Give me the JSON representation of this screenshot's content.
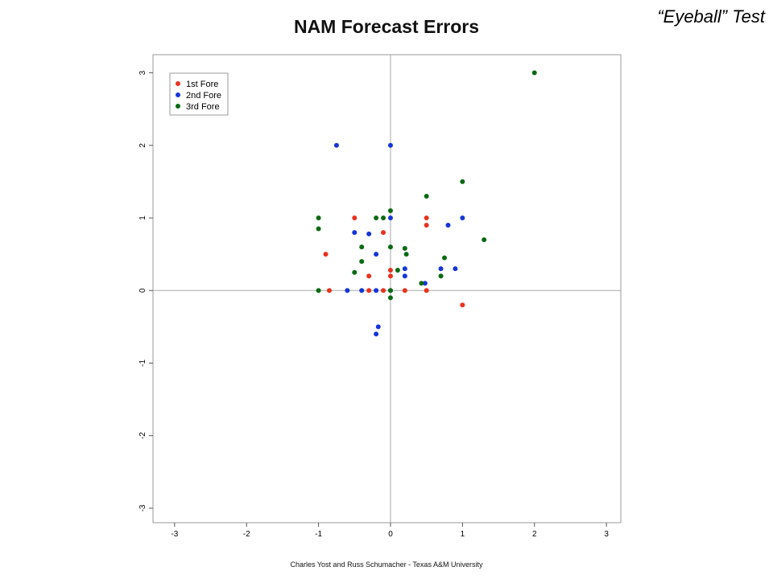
{
  "corner_label": "“Eyeball” Test",
  "footer": "Charles Yost and Russ Schumacher - Texas A&M University",
  "chart_data": {
    "type": "scatter",
    "title": "NAM Forecast Errors",
    "xlabel": "",
    "ylabel": "",
    "xlim": [
      -3.3,
      3.2
    ],
    "ylim": [
      -3.2,
      3.25
    ],
    "xticks": [
      -3,
      -2,
      -1,
      0,
      1,
      2,
      3
    ],
    "yticks": [
      -3,
      -2,
      -1,
      0,
      1,
      2,
      3
    ],
    "legend_position": "top-left",
    "reference_lines": [
      0
    ],
    "series": [
      {
        "name": "1st Fore",
        "color": "#e8321e",
        "points": [
          [
            -0.5,
            1.0
          ],
          [
            -0.1,
            0.8
          ],
          [
            -0.9,
            0.5
          ],
          [
            -0.85,
            0.0
          ],
          [
            -0.3,
            0.2
          ],
          [
            -0.3,
            0.0
          ],
          [
            -0.1,
            0.0
          ],
          [
            0.0,
            0.28
          ],
          [
            0.0,
            0.2
          ],
          [
            0.2,
            0.0
          ],
          [
            0.5,
            1.0
          ],
          [
            0.5,
            0.9
          ],
          [
            0.5,
            0.0
          ],
          [
            1.0,
            -0.2
          ]
        ]
      },
      {
        "name": "2nd Fore",
        "color": "#1535d8",
        "points": [
          [
            -0.75,
            2.0
          ],
          [
            0.0,
            2.0
          ],
          [
            0.0,
            1.0
          ],
          [
            -0.5,
            0.8
          ],
          [
            -0.3,
            0.78
          ],
          [
            -0.2,
            0.5
          ],
          [
            -0.6,
            0.0
          ],
          [
            -0.4,
            0.0
          ],
          [
            -0.2,
            0.0
          ],
          [
            0.0,
            0.0
          ],
          [
            -0.17,
            -0.5
          ],
          [
            -0.2,
            -0.6
          ],
          [
            0.2,
            0.3
          ],
          [
            0.2,
            0.2
          ],
          [
            0.48,
            0.1
          ],
          [
            0.7,
            0.3
          ],
          [
            0.8,
            0.9
          ],
          [
            0.9,
            0.3
          ],
          [
            1.0,
            1.0
          ]
        ]
      },
      {
        "name": "3rd Fore",
        "color": "#0a6a12",
        "points": [
          [
            2.0,
            3.0
          ],
          [
            1.0,
            1.5
          ],
          [
            0.5,
            1.3
          ],
          [
            1.3,
            0.7
          ],
          [
            0.0,
            1.1
          ],
          [
            -0.2,
            1.0
          ],
          [
            -0.1,
            1.0
          ],
          [
            -1.0,
            1.0
          ],
          [
            -1.0,
            0.85
          ],
          [
            -0.4,
            0.6
          ],
          [
            0.0,
            0.6
          ],
          [
            0.2,
            0.58
          ],
          [
            0.22,
            0.5
          ],
          [
            -0.4,
            0.4
          ],
          [
            -0.5,
            0.25
          ],
          [
            0.1,
            0.28
          ],
          [
            0.75,
            0.45
          ],
          [
            0.7,
            0.2
          ],
          [
            0.43,
            0.1
          ],
          [
            -1.0,
            0.0
          ],
          [
            0.0,
            0.0
          ],
          [
            0.0,
            -0.1
          ]
        ]
      }
    ]
  }
}
